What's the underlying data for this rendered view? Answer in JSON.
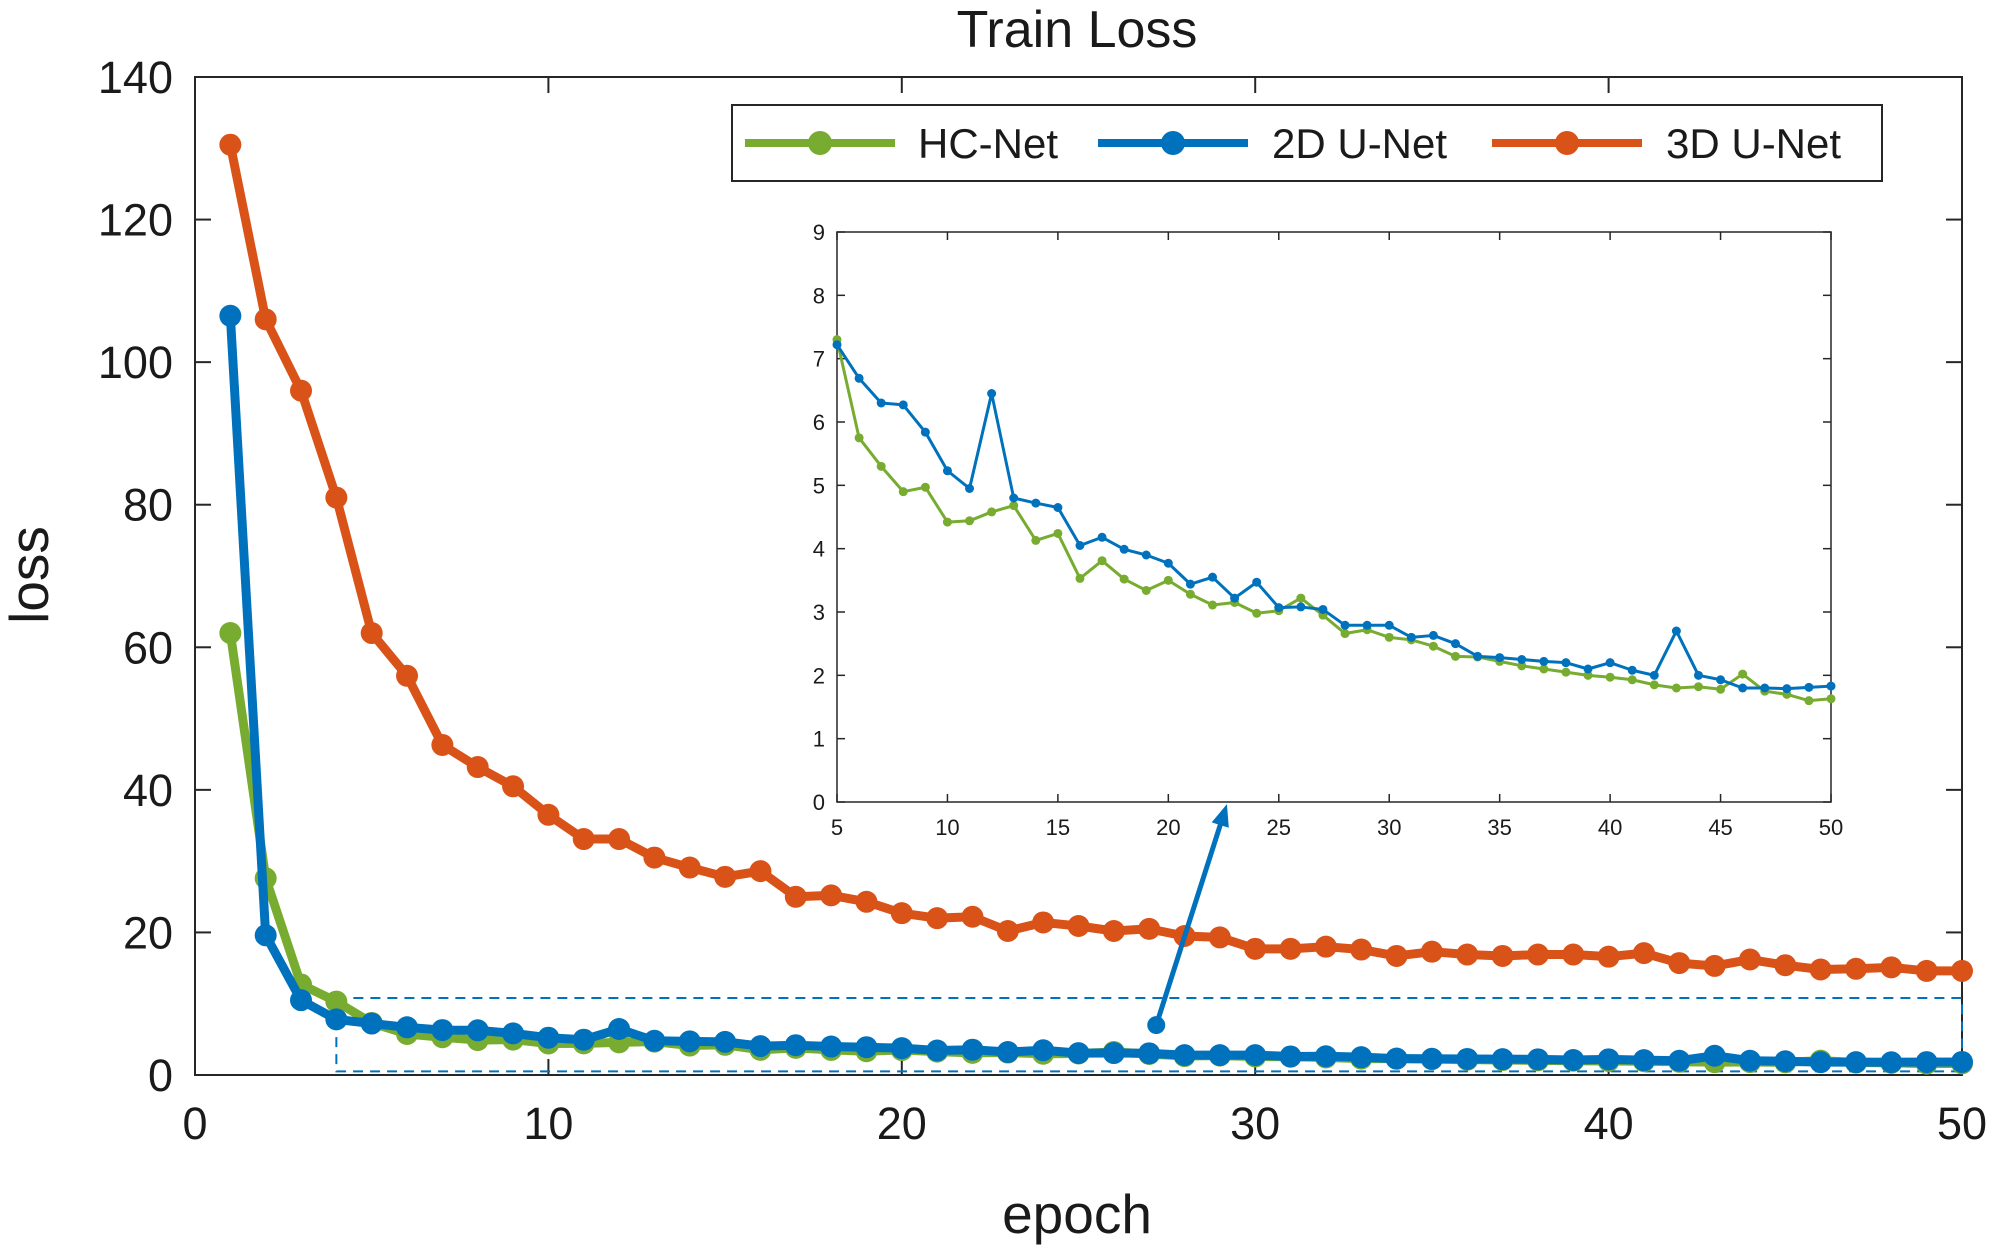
{
  "chart_data": {
    "type": "line",
    "title": "Train Loss",
    "xlabel": "epoch",
    "ylabel": "loss",
    "xlim": [
      0,
      50
    ],
    "ylim": [
      0,
      140
    ],
    "xticks": [
      0,
      10,
      20,
      30,
      40,
      50
    ],
    "yticks": [
      0,
      20,
      40,
      60,
      80,
      100,
      120,
      140
    ],
    "grid": false,
    "legend_position": "top-right",
    "colors": {
      "hc_net": "#77ac30",
      "unet_2d": "#0072bd",
      "unet_3d": "#d95319"
    },
    "series": [
      {
        "name": "HC-Net",
        "color": "#77ac30",
        "x": [
          1,
          2,
          3,
          4,
          5,
          6,
          7,
          8,
          9,
          10,
          11,
          12,
          13,
          14,
          15,
          16,
          17,
          18,
          19,
          20,
          21,
          22,
          23,
          24,
          25,
          26,
          27,
          28,
          29,
          30,
          31,
          32,
          33,
          34,
          35,
          36,
          37,
          38,
          39,
          40,
          41,
          42,
          43,
          44,
          45,
          46,
          47,
          48,
          49,
          50
        ],
        "values": [
          62,
          27.6,
          12.7,
          10.3,
          7.3,
          5.75,
          5.3,
          4.9,
          4.97,
          4.42,
          4.44,
          4.58,
          4.68,
          4.13,
          4.24,
          3.53,
          3.81,
          3.52,
          3.34,
          3.5,
          3.28,
          3.11,
          3.15,
          2.98,
          3.02,
          3.22,
          2.95,
          2.66,
          2.72,
          2.6,
          2.56,
          2.46,
          2.3,
          2.29,
          2.22,
          2.15,
          2.1,
          2.05,
          2.0,
          1.97,
          1.93,
          1.85,
          1.8,
          1.82,
          1.78,
          2.02,
          1.75,
          1.7,
          1.6,
          1.63
        ]
      },
      {
        "name": "2D U-Net",
        "color": "#0072bd",
        "x": [
          1,
          2,
          3,
          4,
          5,
          6,
          7,
          8,
          9,
          10,
          11,
          12,
          13,
          14,
          15,
          16,
          17,
          18,
          19,
          20,
          21,
          22,
          23,
          24,
          25,
          26,
          27,
          28,
          29,
          30,
          31,
          32,
          33,
          34,
          35,
          36,
          37,
          38,
          39,
          40,
          41,
          42,
          43,
          44,
          45,
          46,
          47,
          48,
          49,
          50
        ],
        "values": [
          106.5,
          19.6,
          10.5,
          7.8,
          7.22,
          6.69,
          6.3,
          6.27,
          5.84,
          5.23,
          4.95,
          6.45,
          4.8,
          4.72,
          4.65,
          4.05,
          4.18,
          3.99,
          3.9,
          3.77,
          3.44,
          3.55,
          3.22,
          3.47,
          3.07,
          3.08,
          3.04,
          2.79,
          2.79,
          2.79,
          2.6,
          2.63,
          2.5,
          2.3,
          2.28,
          2.25,
          2.22,
          2.2,
          2.1,
          2.2,
          2.08,
          2.0,
          2.7,
          2.0,
          1.93,
          1.8,
          1.8,
          1.79,
          1.81,
          1.83
        ]
      },
      {
        "name": "3D U-Net",
        "color": "#d95319",
        "x": [
          1,
          2,
          3,
          4,
          5,
          6,
          7,
          8,
          9,
          10,
          11,
          12,
          13,
          14,
          15,
          16,
          17,
          18,
          19,
          20,
          21,
          22,
          23,
          24,
          25,
          26,
          27,
          28,
          29,
          30,
          31,
          32,
          33,
          34,
          35,
          36,
          37,
          38,
          39,
          40,
          41,
          42,
          43,
          44,
          45,
          46,
          47,
          48,
          49,
          50
        ],
        "values": [
          130.5,
          106,
          96,
          81,
          62,
          56,
          46.3,
          43.2,
          40.5,
          36.5,
          33.1,
          33.1,
          30.5,
          29.1,
          27.8,
          28.6,
          25,
          25.2,
          24.3,
          22.7,
          22,
          22.2,
          20.2,
          21.4,
          20.9,
          20.2,
          20.5,
          19.5,
          19.3,
          17.7,
          17.7,
          18,
          17.6,
          16.7,
          17.3,
          16.9,
          16.7,
          16.9,
          16.9,
          16.6,
          17.1,
          15.7,
          15.3,
          16.2,
          15.4,
          14.8,
          14.9,
          15.1,
          14.6,
          14.6
        ]
      }
    ],
    "inset": {
      "xlim": [
        5,
        50
      ],
      "ylim": [
        0,
        9
      ],
      "xticks": [
        5,
        10,
        15,
        20,
        25,
        30,
        35,
        40,
        45,
        50
      ],
      "yticks": [
        0,
        1,
        2,
        3,
        4,
        5,
        6,
        7,
        8,
        9
      ],
      "series_shown": [
        "HC-Net",
        "2D U-Net"
      ],
      "zoom_region": {
        "x": [
          4,
          50
        ],
        "y": [
          0.5,
          10.8
        ]
      },
      "arrow": {
        "from": [
          27.2,
          7
        ],
        "to": [
          29.2,
          38
        ]
      }
    }
  }
}
